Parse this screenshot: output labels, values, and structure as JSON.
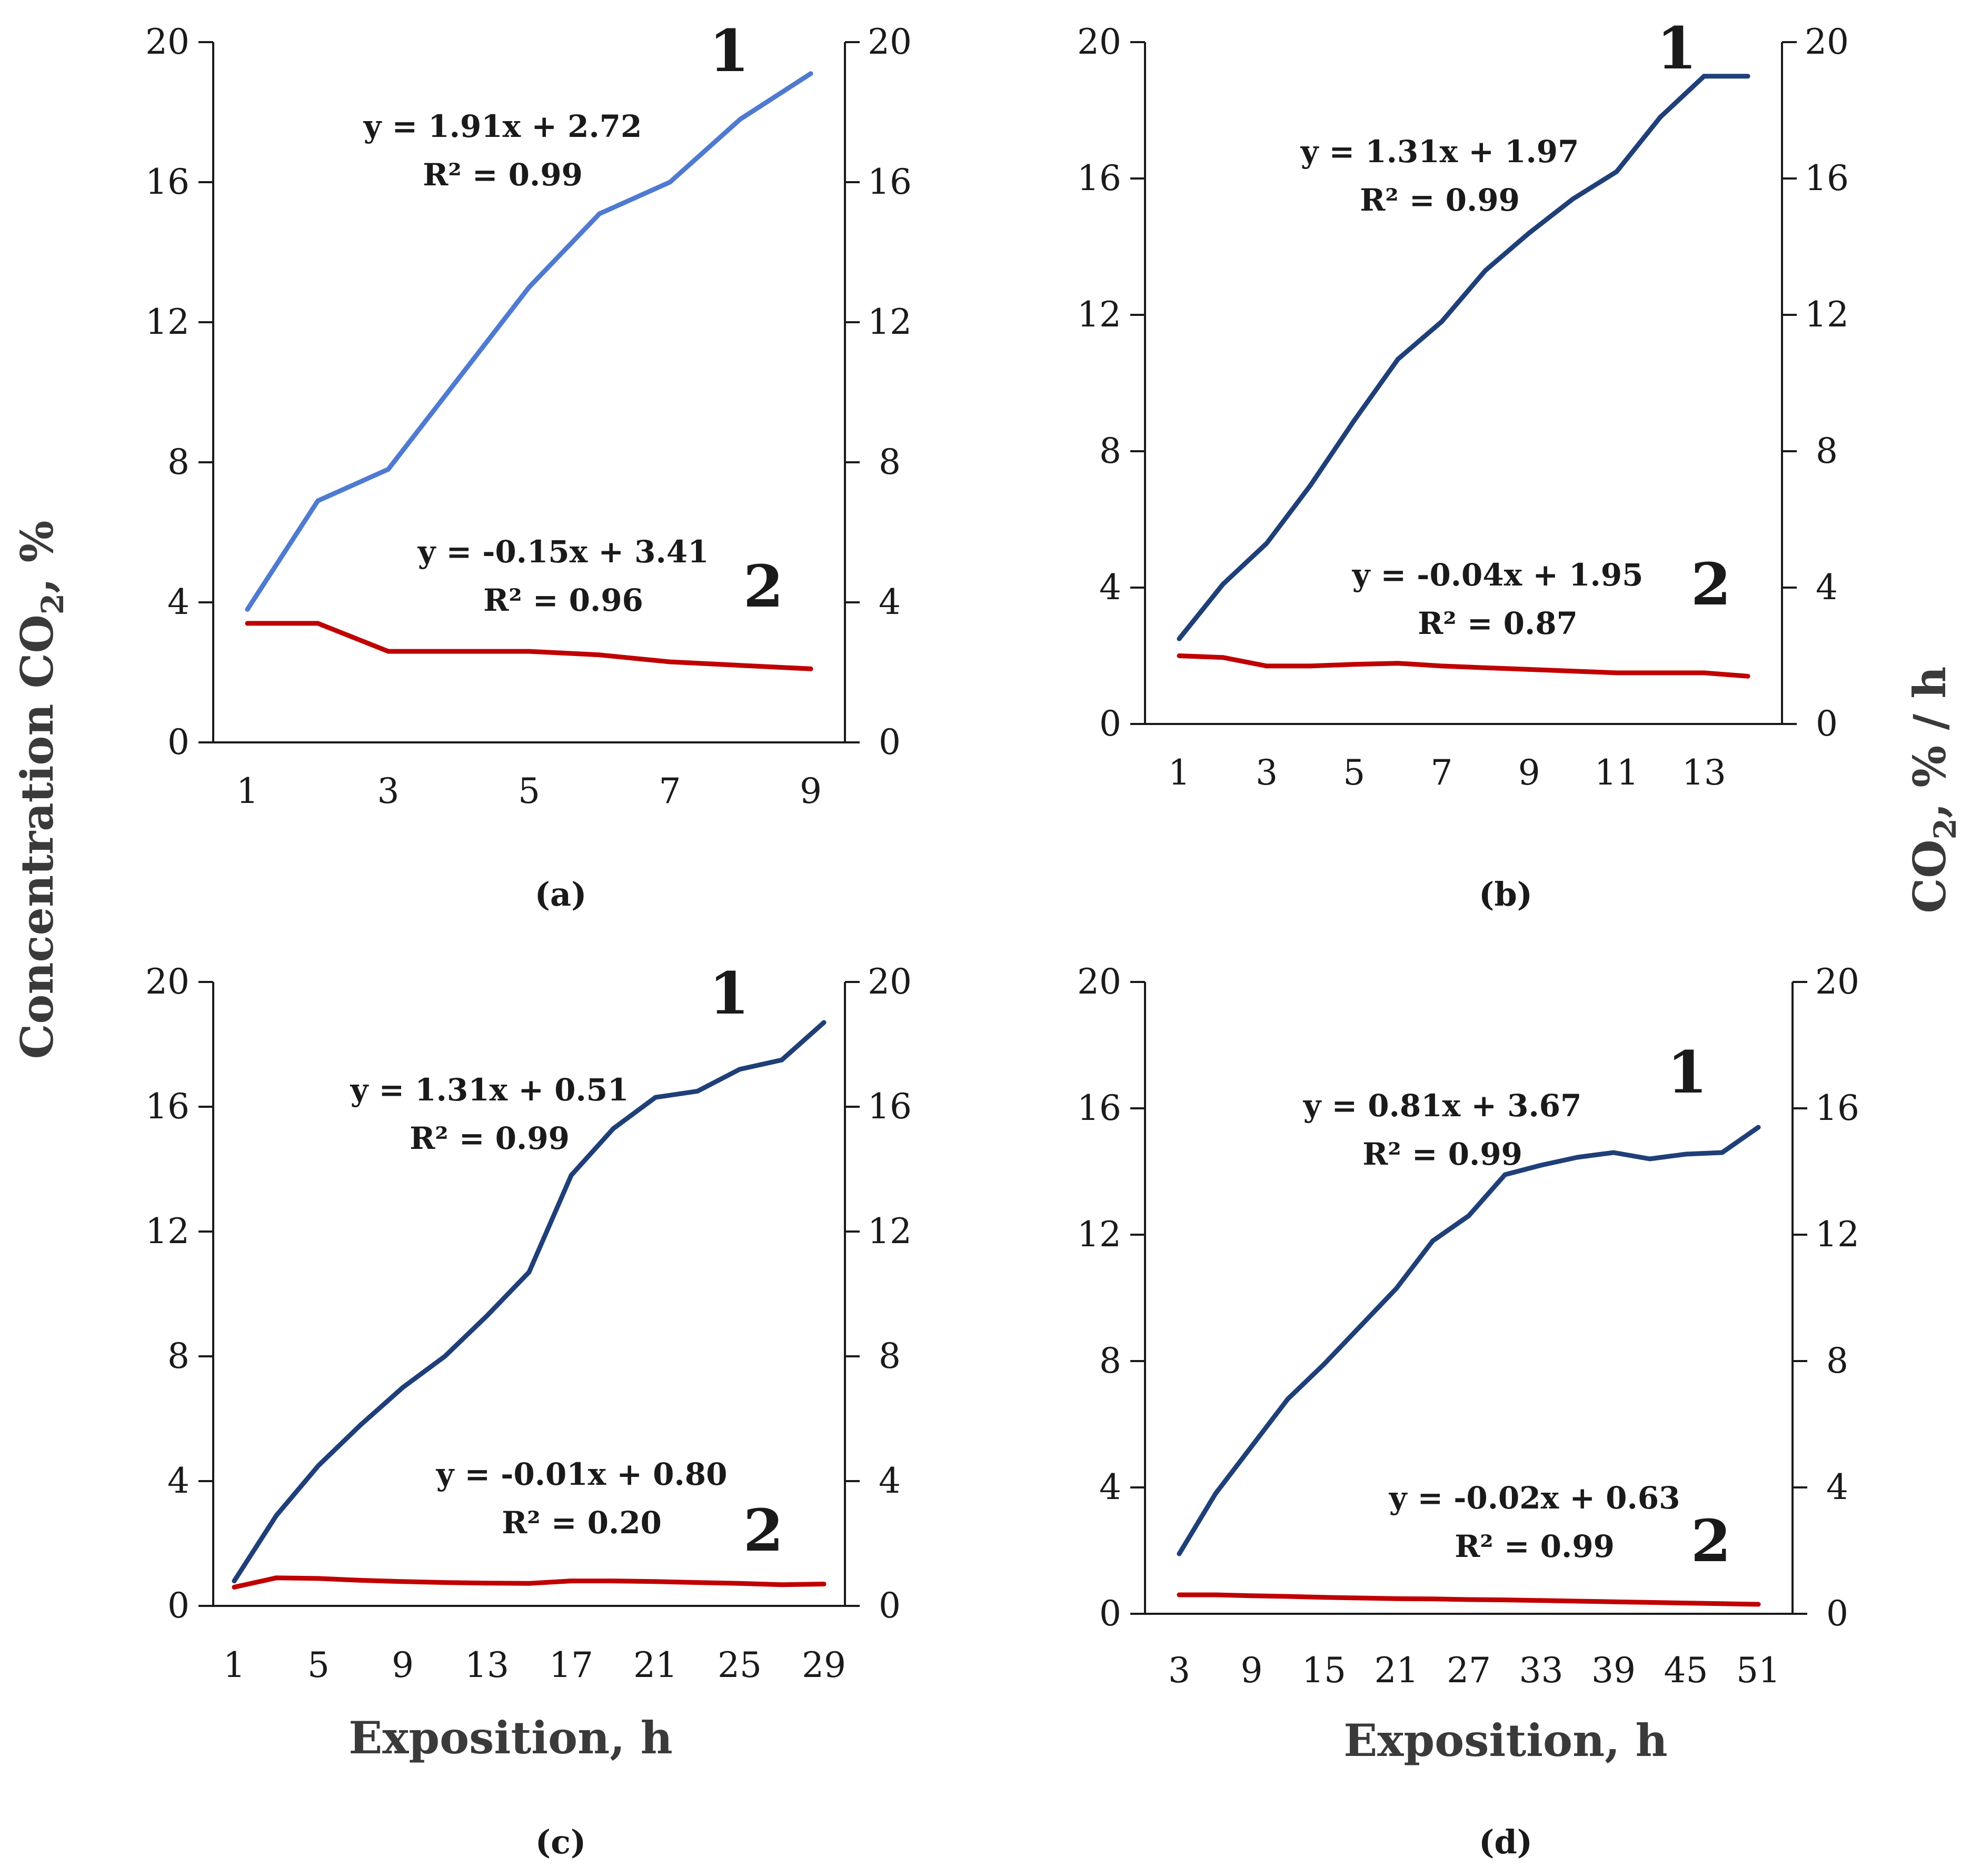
{
  "figure": {
    "y_left_title": "Concentration CO",
    "y_left_sub": "2",
    "y_left_suffix": ", %",
    "y_right_title": "CO",
    "y_right_sub": "2",
    "y_right_suffix": ", % / h"
  },
  "colors": {
    "series1_a": "#4f7ad0",
    "series1": "#1f3f78",
    "series2": "#c00000"
  },
  "chart_data": [
    {
      "type": "line",
      "panel_label": "(a)",
      "xlabel": "",
      "ylabel": "Concentration CO2, %",
      "y2label": "CO2, % / h",
      "ylim": [
        0,
        20
      ],
      "yticks": [
        "0",
        "4",
        "8",
        "12",
        "16",
        "20"
      ],
      "y2ticks": [
        "0",
        "4",
        "8",
        "12",
        "16",
        "20"
      ],
      "x": [
        1,
        2,
        3,
        4,
        5,
        6,
        7,
        8,
        9
      ],
      "xtick_labels": [
        "1",
        "3",
        "5",
        "7",
        "9"
      ],
      "series": [
        {
          "name": "1",
          "values": [
            3.8,
            6.9,
            7.8,
            10.4,
            13.0,
            15.1,
            16.0,
            17.8,
            19.1
          ],
          "equation": "y = 1.91x + 2.72",
          "r2": "R² = 0.99"
        },
        {
          "name": "2",
          "values": [
            3.4,
            3.4,
            2.6,
            2.6,
            2.6,
            2.5,
            2.3,
            2.2,
            2.1
          ],
          "equation": "y = -0.15x + 3.41",
          "r2": "R² = 0.96"
        }
      ]
    },
    {
      "type": "line",
      "panel_label": "(b)",
      "xlabel": "",
      "ylabel": "Concentration CO2, %",
      "y2label": "CO2, % / h",
      "ylim": [
        0,
        20
      ],
      "yticks": [
        "0",
        "4",
        "8",
        "12",
        "16",
        "20"
      ],
      "y2ticks": [
        "0",
        "4",
        "8",
        "12",
        "16",
        "20"
      ],
      "x": [
        1,
        2,
        3,
        4,
        5,
        6,
        7,
        8,
        9,
        10,
        11,
        12,
        13,
        14
      ],
      "xtick_labels": [
        "1",
        "3",
        "5",
        "7",
        "9",
        "11",
        "13"
      ],
      "series": [
        {
          "name": "1",
          "values": [
            2.5,
            4.1,
            5.3,
            7.0,
            8.9,
            10.7,
            11.8,
            13.3,
            14.4,
            15.4,
            16.2,
            17.8,
            19.0,
            19.0
          ],
          "equation": "y = 1.31x + 1.97",
          "r2": "R² = 0.99"
        },
        {
          "name": "2",
          "values": [
            2.0,
            1.95,
            1.7,
            1.7,
            1.75,
            1.78,
            1.7,
            1.65,
            1.6,
            1.55,
            1.5,
            1.5,
            1.5,
            1.4
          ],
          "equation": "y = -0.04x + 1.95",
          "r2": "R² = 0.87"
        }
      ]
    },
    {
      "type": "line",
      "panel_label": "(c)",
      "xlabel": "Exposition, h",
      "ylabel": "Concentration CO2, %",
      "y2label": "CO2, % / h",
      "ylim": [
        0,
        20
      ],
      "yticks": [
        "0",
        "4",
        "8",
        "12",
        "16",
        "20"
      ],
      "y2ticks": [
        "0",
        "4",
        "8",
        "12",
        "16",
        "20"
      ],
      "x": [
        1,
        3,
        5,
        7,
        9,
        11,
        13,
        15,
        17,
        19,
        21,
        23,
        25,
        27,
        29
      ],
      "xtick_labels": [
        "1",
        "5",
        "9",
        "13",
        "17",
        "21",
        "25",
        "29"
      ],
      "series": [
        {
          "name": "1",
          "values": [
            0.8,
            2.9,
            4.5,
            5.8,
            7.0,
            8.0,
            9.3,
            10.7,
            13.8,
            15.3,
            16.3,
            16.5,
            17.2,
            17.5,
            18.7
          ],
          "equation": "y = 1.31x + 0.51",
          "r2": "R² = 0.99"
        },
        {
          "name": "2",
          "values": [
            0.6,
            0.9,
            0.88,
            0.82,
            0.78,
            0.75,
            0.73,
            0.72,
            0.8,
            0.8,
            0.78,
            0.75,
            0.72,
            0.68,
            0.7
          ],
          "equation": "y = -0.01x + 0.80",
          "r2": "R² = 0.20"
        }
      ]
    },
    {
      "type": "line",
      "panel_label": "(d)",
      "xlabel": "Exposition, h",
      "ylabel": "Concentration CO2, %",
      "y2label": "CO2, % / h",
      "ylim": [
        0,
        20
      ],
      "yticks": [
        "0",
        "4",
        "8",
        "12",
        "16",
        "20"
      ],
      "y2ticks": [
        "0",
        "4",
        "8",
        "12",
        "16",
        "20"
      ],
      "x": [
        3,
        6,
        9,
        12,
        15,
        18,
        21,
        24,
        27,
        30,
        33,
        36,
        39,
        42,
        45,
        48,
        51
      ],
      "xtick_labels": [
        "3",
        "9",
        "15",
        "21",
        "27",
        "33",
        "39",
        "45",
        "51"
      ],
      "series": [
        {
          "name": "1",
          "values": [
            1.9,
            3.8,
            5.3,
            6.8,
            7.9,
            9.1,
            10.3,
            11.8,
            12.6,
            13.9,
            14.2,
            14.45,
            14.6,
            14.4,
            14.55,
            14.6,
            15.4
          ],
          "equation": "y = 0.81x + 3.67",
          "r2": "R² = 0.99"
        },
        {
          "name": "2",
          "values": [
            0.6,
            0.6,
            0.57,
            0.55,
            0.52,
            0.5,
            0.48,
            0.47,
            0.45,
            0.44,
            0.42,
            0.4,
            0.38,
            0.36,
            0.34,
            0.32,
            0.3
          ],
          "equation": "y = -0.02x + 0.63",
          "r2": "R² = 0.99"
        }
      ]
    }
  ]
}
